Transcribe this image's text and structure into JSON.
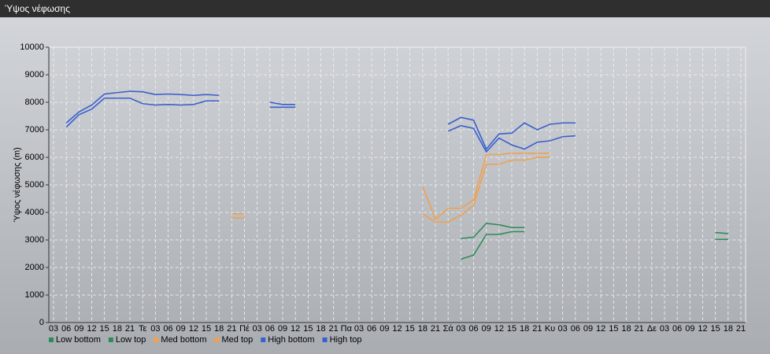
{
  "chart_data": {
    "type": "line",
    "title": "Ύψος νέφωσης",
    "y_label": "Ύψος νέφωσης (m)",
    "categories": [
      "03",
      "06",
      "09",
      "12",
      "15",
      "18",
      "21",
      "Τε",
      "03",
      "06",
      "09",
      "12",
      "15",
      "18",
      "21",
      "Πέ",
      "03",
      "06",
      "09",
      "12",
      "15",
      "18",
      "21",
      "Πα",
      "03",
      "06",
      "09",
      "12",
      "15",
      "18",
      "21",
      "Σά",
      "03",
      "06",
      "09",
      "12",
      "15",
      "18",
      "21",
      "Κυ",
      "03",
      "06",
      "09",
      "12",
      "15",
      "18",
      "21",
      "Δε",
      "03",
      "06",
      "09",
      "12",
      "15",
      "18",
      "21"
    ],
    "ylim": [
      0,
      10000
    ],
    "yticks": [
      0,
      1000,
      2000,
      3000,
      4000,
      5000,
      6000,
      7000,
      8000,
      9000,
      10000
    ],
    "grid": true,
    "series": [
      {
        "name": "Low bottom",
        "color": "#2e8b57",
        "values": [
          null,
          null,
          null,
          null,
          null,
          null,
          null,
          null,
          null,
          null,
          null,
          null,
          null,
          null,
          null,
          null,
          null,
          null,
          null,
          null,
          null,
          null,
          null,
          null,
          null,
          null,
          null,
          null,
          null,
          null,
          null,
          null,
          2300,
          2450,
          3200,
          3200,
          3300,
          3300,
          null,
          null,
          null,
          null,
          null,
          null,
          null,
          null,
          null,
          null,
          null,
          null,
          null,
          null,
          3020,
          3020,
          null
        ]
      },
      {
        "name": "Low top",
        "color": "#2e8b57",
        "values": [
          null,
          null,
          null,
          null,
          null,
          null,
          null,
          null,
          null,
          null,
          null,
          null,
          null,
          null,
          null,
          null,
          null,
          null,
          null,
          null,
          null,
          null,
          null,
          null,
          null,
          null,
          null,
          null,
          null,
          null,
          null,
          null,
          3050,
          3100,
          3600,
          3550,
          3450,
          3450,
          null,
          null,
          null,
          null,
          null,
          null,
          null,
          null,
          null,
          null,
          null,
          null,
          null,
          null,
          3270,
          3230,
          null
        ]
      },
      {
        "name": "Med bottom",
        "color": "#f0a050",
        "values": [
          null,
          null,
          null,
          null,
          null,
          null,
          null,
          null,
          null,
          null,
          null,
          null,
          null,
          null,
          3800,
          3800,
          null,
          null,
          null,
          null,
          null,
          null,
          null,
          null,
          null,
          null,
          null,
          null,
          null,
          3950,
          3650,
          3650,
          3900,
          4250,
          5750,
          5750,
          5900,
          5900,
          6000,
          6000,
          null,
          null,
          null,
          null,
          null,
          null,
          null,
          null,
          null,
          null,
          null,
          null,
          null,
          null,
          null
        ]
      },
      {
        "name": "Med top",
        "color": "#f0a050",
        "values": [
          null,
          null,
          null,
          null,
          null,
          null,
          null,
          null,
          null,
          null,
          null,
          null,
          null,
          null,
          3950,
          3950,
          null,
          null,
          null,
          null,
          null,
          null,
          null,
          null,
          null,
          null,
          null,
          null,
          null,
          4950,
          3750,
          4150,
          4150,
          4450,
          6100,
          6100,
          6150,
          6150,
          6150,
          6150,
          null,
          null,
          null,
          null,
          null,
          null,
          null,
          null,
          null,
          null,
          null,
          null,
          null,
          null,
          null
        ]
      },
      {
        "name": "High bottom",
        "color": "#3a5fcd",
        "values": [
          null,
          7100,
          7550,
          7750,
          8150,
          8150,
          8150,
          7950,
          7900,
          7920,
          7900,
          7920,
          8050,
          8050,
          null,
          null,
          null,
          7820,
          7820,
          7820,
          null,
          null,
          null,
          null,
          null,
          null,
          null,
          null,
          null,
          null,
          null,
          6950,
          7150,
          7050,
          6200,
          6700,
          6450,
          6300,
          6550,
          6600,
          6750,
          6780,
          null,
          null,
          null,
          null,
          null,
          null,
          null,
          null,
          null,
          null,
          null,
          null,
          null
        ]
      },
      {
        "name": "High top",
        "color": "#3a5fcd",
        "values": [
          null,
          7250,
          7650,
          7900,
          8300,
          8350,
          8400,
          8380,
          8280,
          8300,
          8280,
          8250,
          8280,
          8250,
          null,
          null,
          null,
          8000,
          7920,
          7920,
          null,
          null,
          null,
          null,
          null,
          null,
          null,
          null,
          null,
          null,
          null,
          7200,
          7450,
          7350,
          6300,
          6850,
          6880,
          7250,
          7000,
          7200,
          7250,
          7250,
          null,
          null,
          null,
          null,
          null,
          null,
          null,
          null,
          null,
          null,
          null,
          null,
          null
        ]
      }
    ]
  }
}
